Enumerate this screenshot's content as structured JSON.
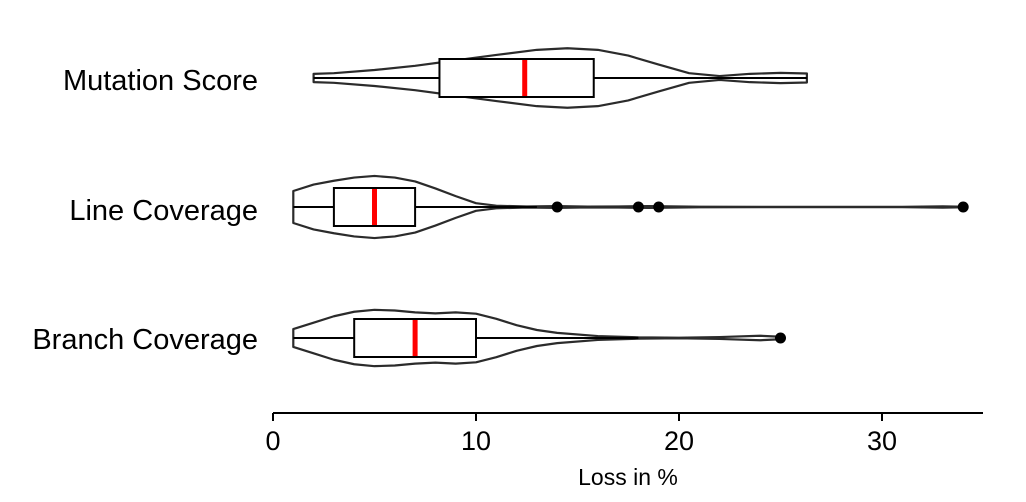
{
  "chart_data": {
    "type": "violin",
    "orientation": "horizontal",
    "title": "",
    "xlabel": "Loss in %",
    "ylabel": "",
    "xlim": [
      0,
      35
    ],
    "xticks": [
      0,
      10,
      20,
      30
    ],
    "x_tick_labels": [
      "0",
      "10",
      "20",
      "30"
    ],
    "grid": false,
    "legend": "none",
    "colors": {
      "median": "#ff0000",
      "outline": "#2b2b2b",
      "box": "#000000",
      "outlier": "#000000"
    },
    "categories": [
      "Mutation Score",
      "Line Coverage",
      "Branch Coverage"
    ],
    "series": [
      {
        "category": "Mutation Score",
        "box": {
          "q1": 8.2,
          "median": 12.4,
          "q3": 15.8,
          "whisker_low": 2.0,
          "whisker_high": 26.3
        },
        "outliers": [],
        "density": [
          [
            2.0,
            0.13
          ],
          [
            3.0,
            0.15
          ],
          [
            5.0,
            0.25
          ],
          [
            7.0,
            0.38
          ],
          [
            9.0,
            0.55
          ],
          [
            11.0,
            0.72
          ],
          [
            13.0,
            0.88
          ],
          [
            14.5,
            0.93
          ],
          [
            16.0,
            0.88
          ],
          [
            17.5,
            0.7
          ],
          [
            19.0,
            0.42
          ],
          [
            20.5,
            0.15
          ],
          [
            22.0,
            0.06
          ],
          [
            23.5,
            0.13
          ],
          [
            25.0,
            0.16
          ],
          [
            26.3,
            0.14
          ]
        ]
      },
      {
        "category": "Line Coverage",
        "box": {
          "q1": 3.0,
          "median": 5.0,
          "q3": 7.0,
          "whisker_low": 1.0,
          "whisker_high": 13.0
        },
        "outliers": [
          14.0,
          18.0,
          19.0,
          34.0
        ],
        "density": [
          [
            1.0,
            0.5
          ],
          [
            2.0,
            0.7
          ],
          [
            3.0,
            0.82
          ],
          [
            4.0,
            0.92
          ],
          [
            5.0,
            0.97
          ],
          [
            6.0,
            0.92
          ],
          [
            7.0,
            0.8
          ],
          [
            8.0,
            0.58
          ],
          [
            9.0,
            0.34
          ],
          [
            10.0,
            0.12
          ],
          [
            11.0,
            0.04
          ],
          [
            12.5,
            0.015
          ],
          [
            14.0,
            0.03
          ],
          [
            15.5,
            0.012
          ],
          [
            17.0,
            0.018
          ],
          [
            18.5,
            0.03
          ],
          [
            19.5,
            0.02
          ],
          [
            21.0,
            0.01
          ],
          [
            24.0,
            0.004
          ],
          [
            28.0,
            0.003
          ],
          [
            31.0,
            0.004
          ],
          [
            33.0,
            0.02
          ],
          [
            34.0,
            0.008
          ]
        ]
      },
      {
        "category": "Branch Coverage",
        "box": {
          "q1": 4.0,
          "median": 7.0,
          "q3": 10.0,
          "whisker_low": 1.0,
          "whisker_high": 18.0
        },
        "outliers": [
          25.0
        ],
        "density": [
          [
            1.0,
            0.28
          ],
          [
            2.0,
            0.48
          ],
          [
            3.0,
            0.68
          ],
          [
            4.0,
            0.82
          ],
          [
            5.0,
            0.88
          ],
          [
            6.0,
            0.86
          ],
          [
            7.0,
            0.8
          ],
          [
            8.0,
            0.77
          ],
          [
            9.0,
            0.8
          ],
          [
            10.0,
            0.76
          ],
          [
            11.0,
            0.6
          ],
          [
            12.0,
            0.4
          ],
          [
            13.0,
            0.25
          ],
          [
            14.0,
            0.16
          ],
          [
            16.0,
            0.06
          ],
          [
            18.0,
            0.02
          ],
          [
            20.0,
            0.01
          ],
          [
            22.0,
            0.03
          ],
          [
            24.0,
            0.07
          ],
          [
            25.0,
            0.04
          ]
        ]
      }
    ]
  }
}
